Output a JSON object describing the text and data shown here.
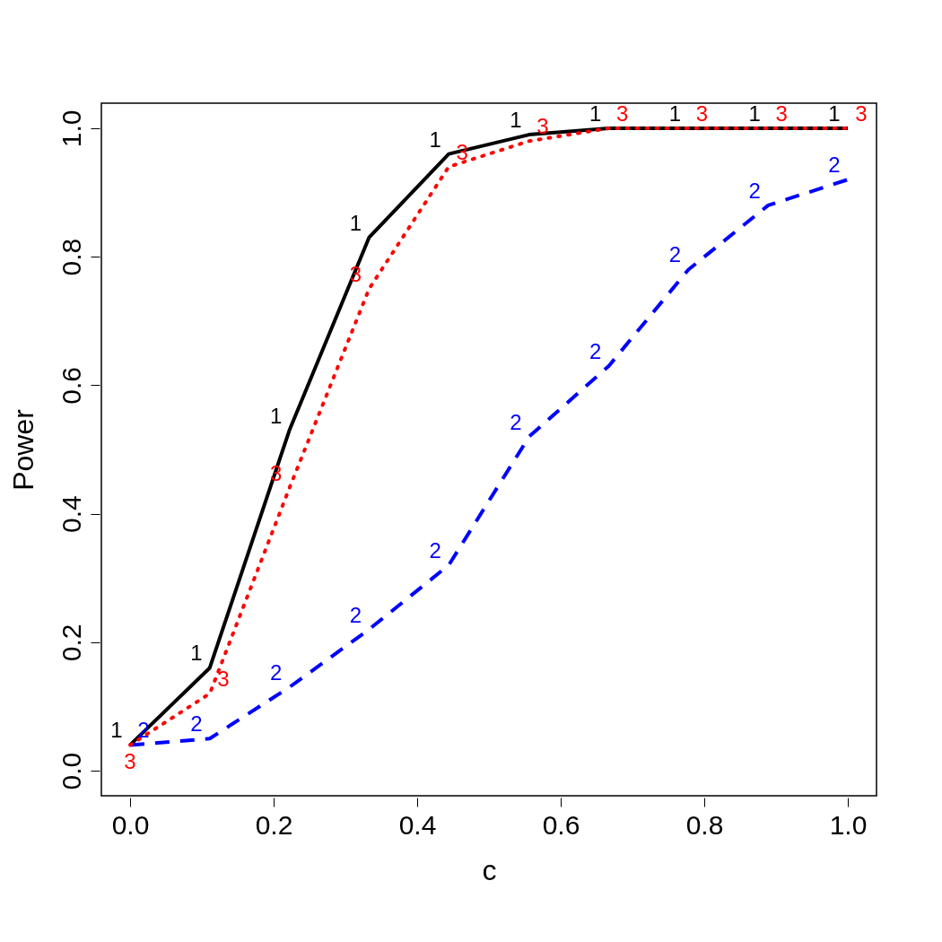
{
  "chart_data": {
    "type": "line",
    "xlabel": "c",
    "ylabel": "Power",
    "x": [
      0,
      0.111,
      0.222,
      0.333,
      0.444,
      0.556,
      0.667,
      0.778,
      0.889,
      1
    ],
    "series": [
      {
        "name": "1",
        "color": "#000000",
        "line_style": "solid",
        "values": [
          0.04,
          0.16,
          0.53,
          0.83,
          0.96,
          0.99,
          1.0,
          1.0,
          1.0,
          1.0
        ]
      },
      {
        "name": "2",
        "color": "#0000ff",
        "line_style": "dashed",
        "values": [
          0.04,
          0.05,
          0.13,
          0.22,
          0.32,
          0.52,
          0.63,
          0.78,
          0.88,
          0.92
        ]
      },
      {
        "name": "3",
        "color": "#ff0000",
        "line_style": "dotted",
        "values": [
          0.04,
          0.12,
          0.44,
          0.75,
          0.94,
          0.98,
          1.0,
          1.0,
          1.0,
          1.0
        ]
      }
    ],
    "xlim": [
      -0.04,
      1.04
    ],
    "ylim": [
      -0.039,
      1.039
    ],
    "xticks": [
      {
        "value": 0,
        "label": "0.0"
      },
      {
        "value": 0.2,
        "label": "0.2"
      },
      {
        "value": 0.4,
        "label": "0.4"
      },
      {
        "value": 0.6,
        "label": "0.6"
      },
      {
        "value": 0.8,
        "label": "0.8"
      },
      {
        "value": 1,
        "label": "1.0"
      }
    ],
    "yticks": [
      {
        "value": 0,
        "label": "0.0"
      },
      {
        "value": 0.2,
        "label": "0.2"
      },
      {
        "value": 0.4,
        "label": "0.4"
      },
      {
        "value": 0.6,
        "label": "0.6"
      },
      {
        "value": 0.8,
        "label": "0.8"
      },
      {
        "value": 1,
        "label": "1.0"
      }
    ],
    "grid": false,
    "legend": false
  }
}
